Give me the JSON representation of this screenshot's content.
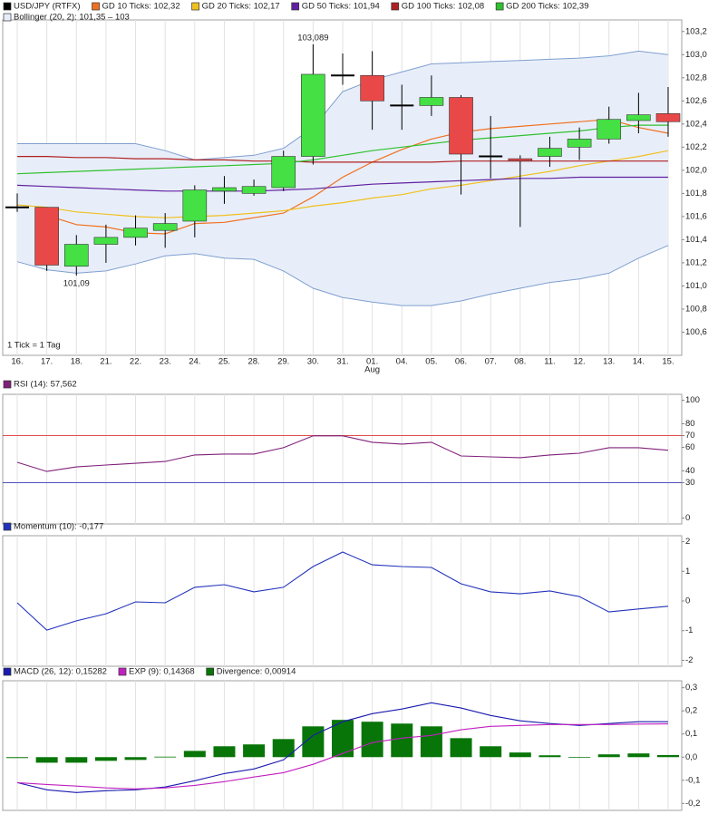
{
  "chart_data": [
    {
      "type": "candlestick",
      "name": "USD/JPY (RTFX)",
      "categories": [
        "16.",
        "17.",
        "18.",
        "21.",
        "22.",
        "23.",
        "24.",
        "25.",
        "28.",
        "29.",
        "30.",
        "31.",
        "01.",
        "04.",
        "05.",
        "06.",
        "07.",
        "08.",
        "11.",
        "12.",
        "13.",
        "14.",
        "15."
      ],
      "sub_labels": [
        null,
        null,
        null,
        null,
        null,
        null,
        null,
        null,
        null,
        null,
        null,
        null,
        "Aug",
        null,
        null,
        null,
        null,
        null,
        null,
        null,
        null,
        null,
        null
      ],
      "open": [
        101.68,
        101.68,
        101.17,
        101.36,
        101.42,
        101.48,
        101.56,
        101.82,
        101.8,
        101.85,
        102.12,
        102.82,
        102.82,
        102.56,
        102.56,
        102.63,
        102.12,
        102.1,
        102.12,
        102.2,
        102.27,
        102.43,
        102.49
      ],
      "close": [
        101.68,
        101.18,
        101.36,
        101.42,
        101.5,
        101.54,
        101.83,
        101.85,
        101.86,
        102.12,
        102.83,
        102.82,
        102.6,
        102.56,
        102.63,
        102.14,
        102.12,
        102.08,
        102.19,
        102.27,
        102.44,
        102.48,
        102.42
      ],
      "high": [
        101.8,
        101.68,
        101.44,
        101.53,
        101.61,
        101.63,
        101.87,
        101.95,
        101.92,
        102.17,
        103.089,
        103.01,
        103.03,
        102.74,
        102.82,
        102.65,
        102.47,
        102.13,
        102.29,
        102.37,
        102.55,
        102.67,
        102.72
      ],
      "low": [
        101.64,
        101.13,
        101.09,
        101.2,
        101.35,
        101.33,
        101.42,
        101.71,
        101.78,
        101.82,
        102.05,
        102.74,
        102.35,
        102.35,
        102.47,
        101.79,
        101.93,
        101.51,
        102.03,
        102.09,
        102.23,
        102.32,
        102.29
      ],
      "up_color": "#44e044",
      "down_color": "#e84848",
      "doji_color": "#000000",
      "high_label": "103,089",
      "low_label": "101,09",
      "footnote": "1 Tick = 1 Tag",
      "series": [
        {
          "name": "GD 10 Ticks: 102,32",
          "color": "#f07020",
          "values": [
            null,
            101.61,
            101.53,
            101.51,
            101.46,
            101.45,
            101.54,
            101.55,
            101.59,
            101.63,
            101.77,
            101.94,
            102.07,
            102.18,
            102.27,
            102.33,
            102.36,
            102.38,
            102.4,
            102.42,
            102.44,
            102.37,
            102.32
          ]
        },
        {
          "name": "GD 20 Ticks: 102,17",
          "color": "#f0c020",
          "values": [
            101.7,
            101.68,
            101.64,
            101.62,
            101.6,
            101.59,
            101.6,
            101.61,
            101.63,
            101.65,
            101.69,
            101.72,
            101.76,
            101.79,
            101.84,
            101.87,
            101.91,
            101.95,
            101.99,
            102.04,
            102.08,
            102.12,
            102.17
          ]
        },
        {
          "name": "GD 50 Ticks: 101,94",
          "color": "#6020a0",
          "values": [
            101.87,
            101.86,
            101.85,
            101.84,
            101.83,
            101.82,
            101.82,
            101.82,
            101.82,
            101.83,
            101.84,
            101.86,
            101.88,
            101.89,
            101.9,
            101.91,
            101.92,
            101.93,
            101.93,
            101.94,
            101.94,
            101.94,
            101.94
          ]
        },
        {
          "name": "GD 100 Ticks: 102,08",
          "color": "#b02020",
          "values": [
            102.12,
            102.12,
            102.11,
            102.11,
            102.1,
            102.1,
            102.09,
            102.09,
            102.08,
            102.08,
            102.07,
            102.07,
            102.07,
            102.07,
            102.07,
            102.08,
            102.08,
            102.08,
            102.08,
            102.08,
            102.08,
            102.08,
            102.08
          ]
        },
        {
          "name": "GD 200 Ticks: 102,39",
          "color": "#30c030",
          "values": [
            101.97,
            101.98,
            101.99,
            102.0,
            102.01,
            102.02,
            102.03,
            102.04,
            102.05,
            102.06,
            102.09,
            102.13,
            102.17,
            102.2,
            102.23,
            102.26,
            102.28,
            102.3,
            102.32,
            102.34,
            102.37,
            102.39,
            102.39
          ]
        }
      ],
      "band": {
        "name": "Bollinger (20, 2): 101,35 – 103",
        "color": "#7f9fd0",
        "fill": "#e8eef9",
        "upper": [
          102.23,
          102.23,
          102.23,
          102.23,
          102.23,
          102.17,
          102.09,
          102.11,
          102.13,
          102.19,
          102.37,
          102.68,
          102.78,
          102.85,
          102.92,
          102.93,
          102.94,
          102.95,
          102.96,
          102.97,
          102.99,
          103.03,
          103.0
        ],
        "lower": [
          101.21,
          101.14,
          101.11,
          101.13,
          101.19,
          101.26,
          101.28,
          101.24,
          101.23,
          101.13,
          100.98,
          100.9,
          100.86,
          100.83,
          100.83,
          100.87,
          100.93,
          100.98,
          101.03,
          101.06,
          101.11,
          101.24,
          101.35
        ]
      },
      "ylim": [
        100.4,
        103.3
      ],
      "yticks": [
        {
          "value": 100.6,
          "label": "100,6"
        },
        {
          "value": 100.8,
          "label": "100,8"
        },
        {
          "value": 101.0,
          "label": "101,0"
        },
        {
          "value": 101.2,
          "label": "101,2"
        },
        {
          "value": 101.4,
          "label": "101,4"
        },
        {
          "value": 101.6,
          "label": "101,6"
        },
        {
          "value": 101.8,
          "label": "101,8"
        },
        {
          "value": 102.0,
          "label": "102,0"
        },
        {
          "value": 102.2,
          "label": "102,2"
        },
        {
          "value": 102.4,
          "label": "102,4"
        },
        {
          "value": 102.6,
          "label": "102,6"
        },
        {
          "value": 102.8,
          "label": "102,8"
        },
        {
          "value": 103.0,
          "label": "103,0"
        },
        {
          "value": 103.2,
          "label": "103,2"
        }
      ],
      "grid": true
    },
    {
      "type": "line",
      "series": [
        {
          "name": "RSI (14): 57,562",
          "color": "#80207a",
          "values": [
            47.3,
            39.5,
            43.4,
            45.0,
            46.5,
            48.0,
            53.5,
            54.3,
            54.3,
            59.7,
            69.8,
            69.8,
            64.3,
            62.8,
            64.3,
            52.7,
            51.9,
            51.2,
            53.5,
            55.0,
            59.7,
            59.7,
            57.562
          ]
        }
      ],
      "ylim": [
        -5,
        105
      ],
      "yticks": [
        0,
        30,
        40,
        60,
        70,
        80,
        100
      ],
      "hlines": [
        {
          "value": 70,
          "color": "#e05050"
        },
        {
          "value": 30,
          "color": "#5050c0"
        }
      ],
      "grid": true
    },
    {
      "type": "line",
      "series": [
        {
          "name": "Momentum (10): -0,177",
          "color": "#2233bb",
          "values": [
            -0.06,
            -0.98,
            -0.67,
            -0.43,
            -0.03,
            -0.06,
            0.46,
            0.55,
            0.31,
            0.46,
            1.16,
            1.65,
            1.22,
            1.16,
            1.13,
            0.58,
            0.31,
            0.24,
            0.34,
            0.15,
            -0.37,
            -0.27,
            -0.177
          ]
        }
      ],
      "ylim": [
        -2.2,
        2.2
      ],
      "yticks": [
        -2,
        -1,
        0,
        1,
        2
      ],
      "grid": true
    },
    {
      "type": "combo",
      "series": [
        {
          "name": "MACD (26, 12): 0,15282",
          "kind": "line",
          "color": "#1a1ab0",
          "values": [
            -0.11,
            -0.141,
            -0.153,
            -0.145,
            -0.141,
            -0.129,
            -0.102,
            -0.071,
            -0.051,
            -0.012,
            0.094,
            0.153,
            0.188,
            0.208,
            0.235,
            0.212,
            0.18,
            0.157,
            0.145,
            0.137,
            0.145,
            0.153,
            0.15282
          ]
        },
        {
          "name": "EXP (9): 0,14368",
          "kind": "line",
          "color": "#c020c0",
          "values": [
            -0.11,
            -0.118,
            -0.125,
            -0.133,
            -0.137,
            -0.133,
            -0.122,
            -0.106,
            -0.086,
            -0.067,
            -0.031,
            0.016,
            0.063,
            0.082,
            0.094,
            0.118,
            0.133,
            0.137,
            0.141,
            0.141,
            0.141,
            0.143,
            0.14368
          ]
        },
        {
          "name": "Divergence: 0,00914",
          "kind": "bar",
          "color": "#087508",
          "values": [
            -0.004,
            -0.024,
            -0.024,
            -0.016,
            -0.012,
            0.002,
            0.027,
            0.047,
            0.055,
            0.078,
            0.133,
            0.161,
            0.153,
            0.145,
            0.133,
            0.082,
            0.047,
            0.02,
            0.008,
            -0.002,
            0.012,
            0.016,
            0.00914
          ]
        }
      ],
      "ylim": [
        -0.23,
        0.33
      ],
      "yticks": [
        {
          "value": -0.2,
          "label": "-0,2"
        },
        {
          "value": -0.1,
          "label": "-0,1"
        },
        {
          "value": 0.0,
          "label": "0,0"
        },
        {
          "value": 0.1,
          "label": "0,1"
        },
        {
          "value": 0.2,
          "label": "0,2"
        },
        {
          "value": 0.3,
          "label": "0,3"
        }
      ],
      "grid": true
    }
  ]
}
